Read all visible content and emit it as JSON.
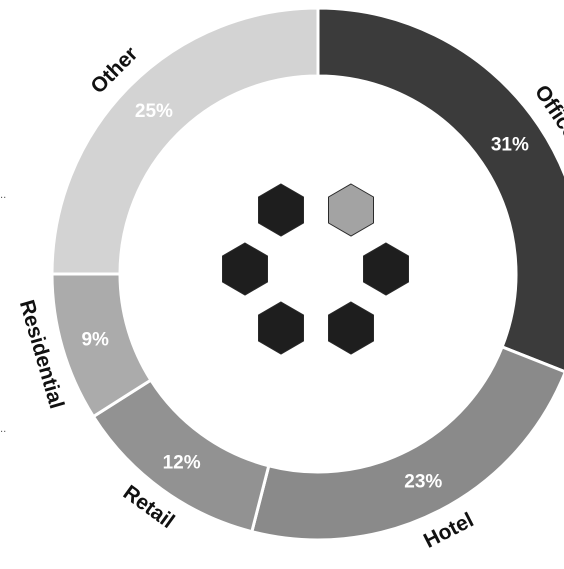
{
  "chart_data": {
    "type": "pie",
    "variant": "donut",
    "categories": [
      "Office",
      "Hotel",
      "Retail",
      "Residential",
      "Other"
    ],
    "values": [
      31,
      23,
      12,
      9,
      25
    ],
    "value_labels": [
      "31%",
      "23%",
      "12%",
      "9%",
      "25%"
    ],
    "colors": [
      "#3b3b3b",
      "#8a8a8a",
      "#929292",
      "#ababab",
      "#d3d3d3"
    ],
    "legend": "none",
    "direction": "clockwise",
    "start": "top"
  },
  "center_graphic": {
    "icon": "hexagon-cluster-icon",
    "colors": [
      "#1e1e1e",
      "#a3a3a3"
    ]
  },
  "edge_marks": [
    "..",
    ".."
  ]
}
